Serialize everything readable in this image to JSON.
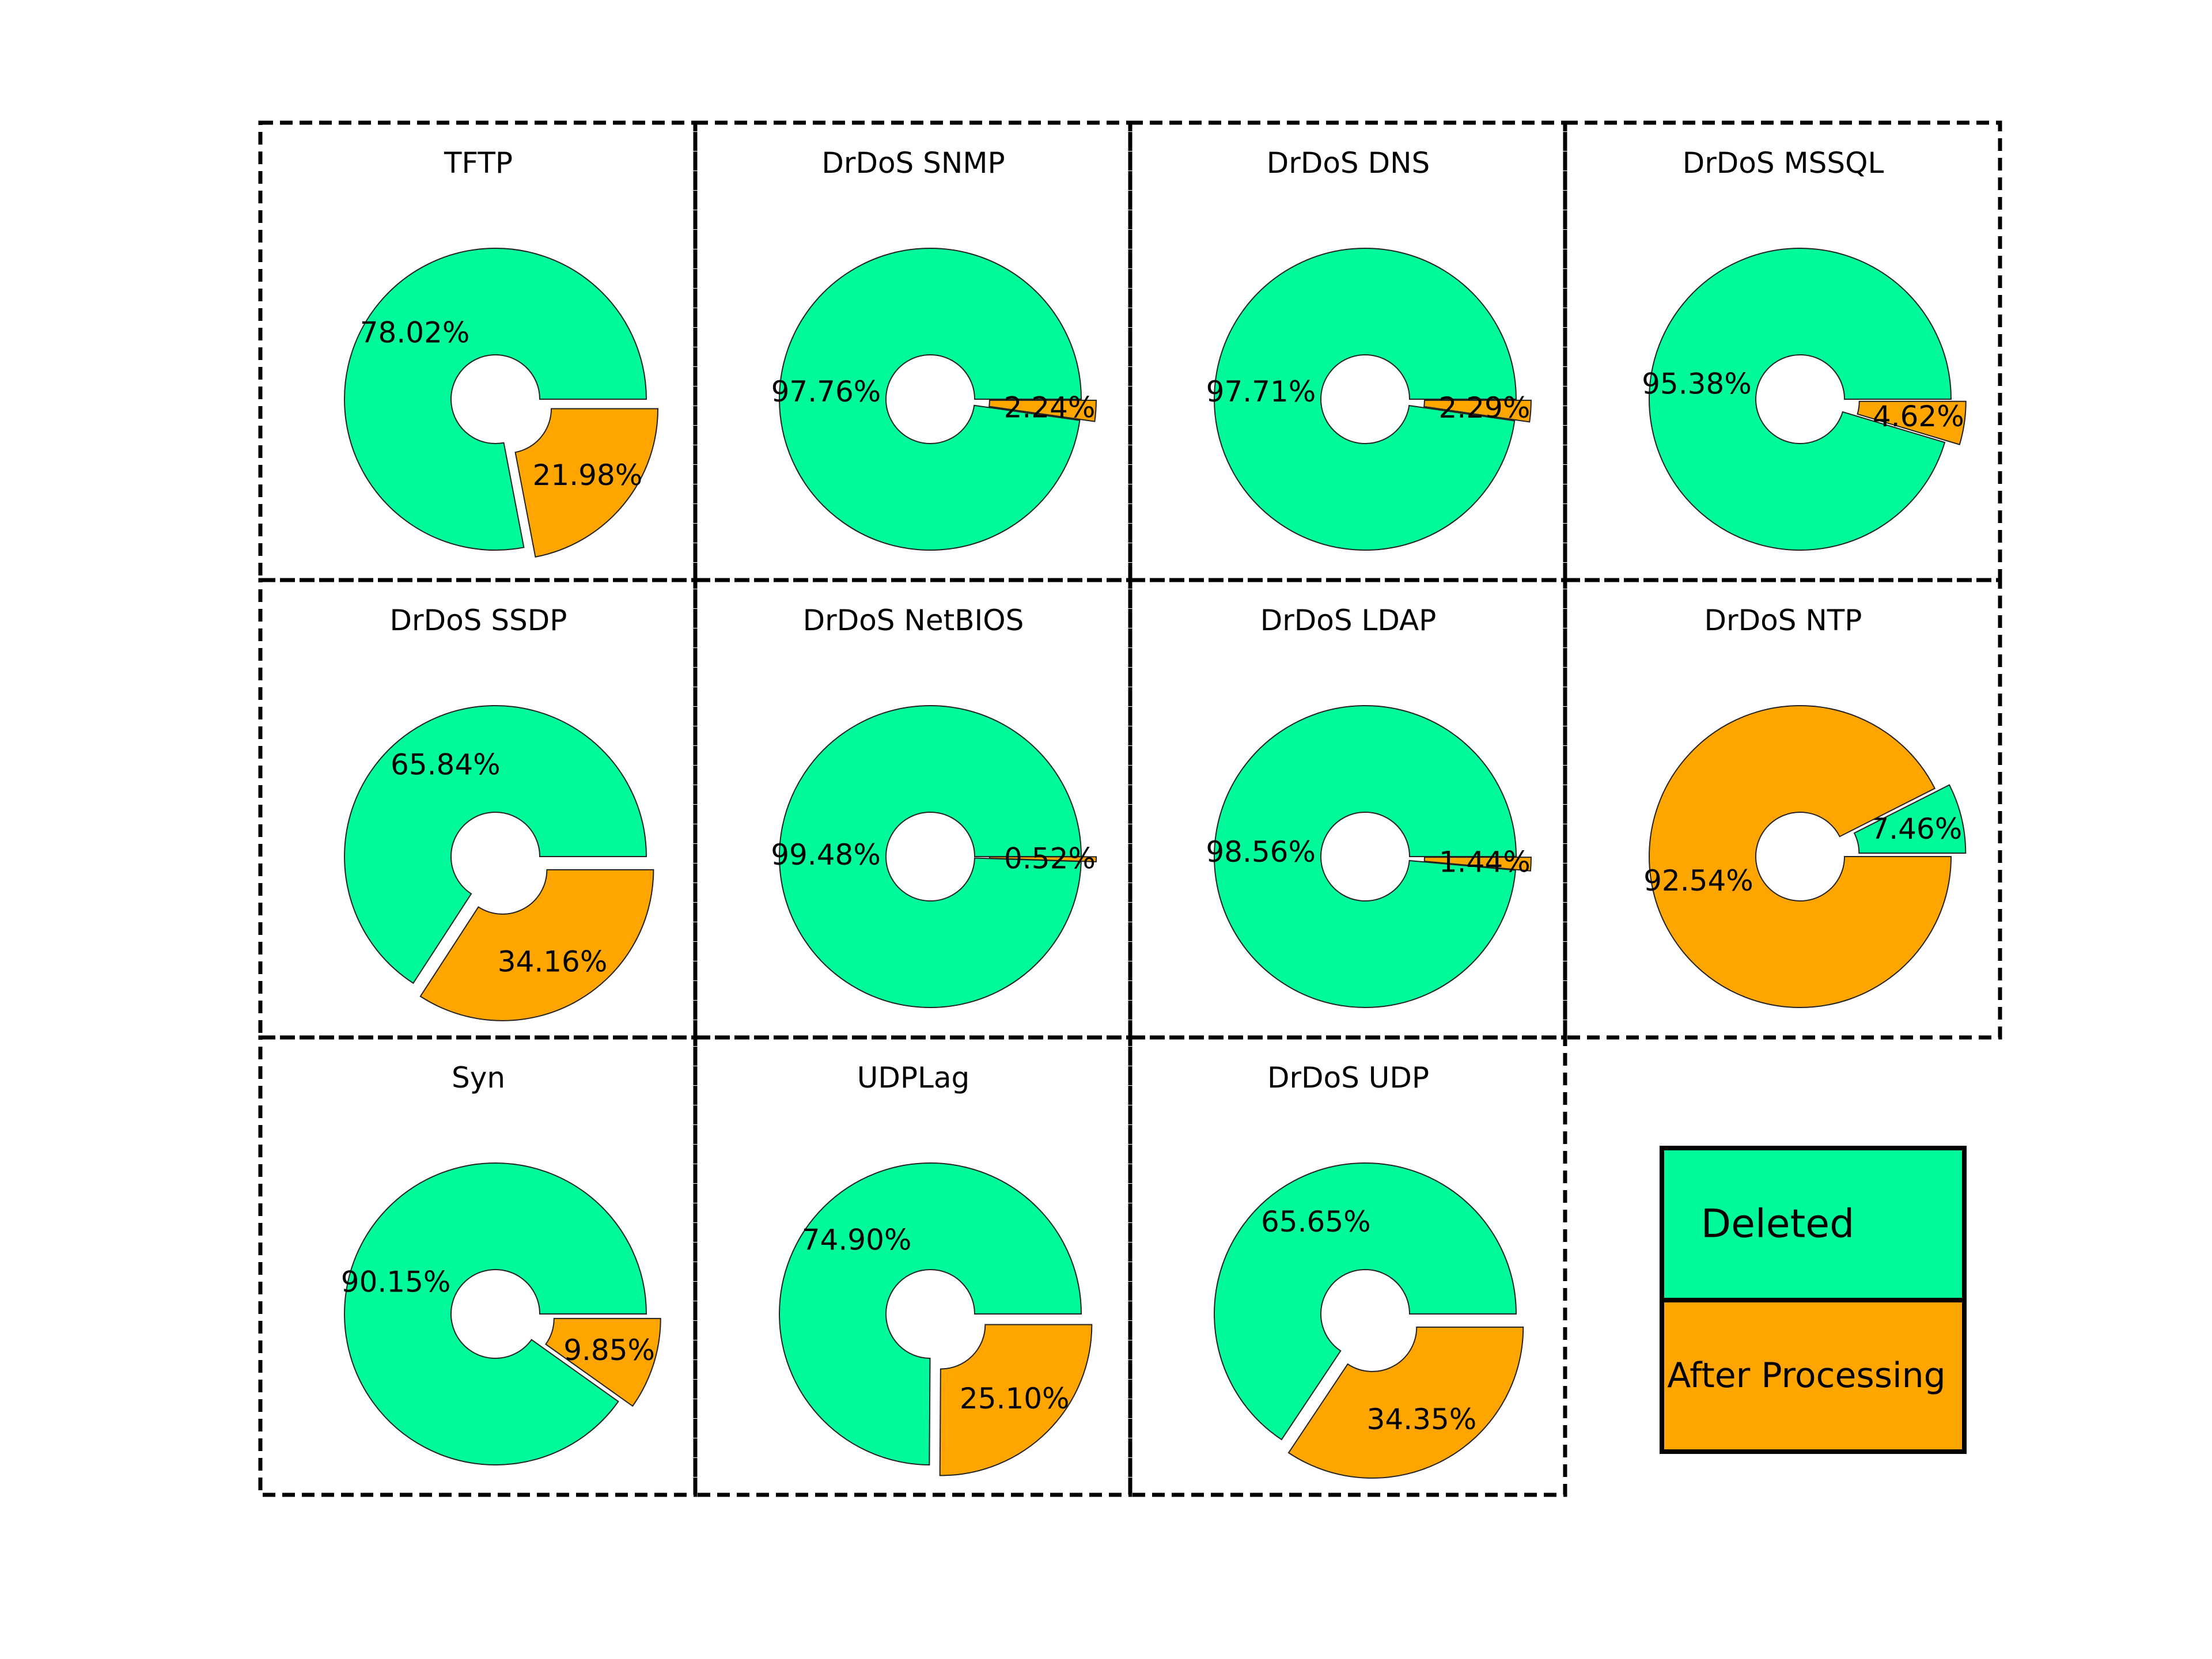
{
  "chart_data": {
    "type": "pie",
    "variant": "donut-grid",
    "legend": {
      "position": "bottom-right",
      "entries": [
        {
          "name": "Deleted",
          "color": "#00fa9a"
        },
        {
          "name": "After Processing",
          "color": "#ffa500"
        }
      ]
    },
    "panels": [
      {
        "title": "TFTP",
        "slices": [
          {
            "series": "Deleted",
            "value": 78.02,
            "label": "78.02%"
          },
          {
            "series": "After Processing",
            "value": 21.98,
            "label": "21.98%",
            "exploded": true
          }
        ]
      },
      {
        "title": "DrDoS SNMP",
        "slices": [
          {
            "series": "Deleted",
            "value": 97.76,
            "label": "97.76%"
          },
          {
            "series": "After Processing",
            "value": 2.24,
            "label": "2.24%",
            "exploded": true
          }
        ]
      },
      {
        "title": "DrDoS DNS",
        "slices": [
          {
            "series": "Deleted",
            "value": 97.71,
            "label": "97.71%"
          },
          {
            "series": "After Processing",
            "value": 2.29,
            "label": "2.29%",
            "exploded": true
          }
        ]
      },
      {
        "title": "DrDoS MSSQL",
        "slices": [
          {
            "series": "Deleted",
            "value": 95.38,
            "label": "95.38%"
          },
          {
            "series": "After Processing",
            "value": 4.62,
            "label": "4.62%",
            "exploded": true
          }
        ]
      },
      {
        "title": "DrDoS SSDP",
        "slices": [
          {
            "series": "Deleted",
            "value": 65.84,
            "label": "65.84%"
          },
          {
            "series": "After Processing",
            "value": 34.16,
            "label": "34.16%",
            "exploded": true
          }
        ]
      },
      {
        "title": "DrDoS NetBIOS",
        "slices": [
          {
            "series": "Deleted",
            "value": 99.48,
            "label": "99.48%"
          },
          {
            "series": "After Processing",
            "value": 0.52,
            "label": "0.52%",
            "exploded": true
          }
        ]
      },
      {
        "title": "DrDoS LDAP",
        "slices": [
          {
            "series": "Deleted",
            "value": 98.56,
            "label": "98.56%"
          },
          {
            "series": "After Processing",
            "value": 1.44,
            "label": "1.44%",
            "exploded": true
          }
        ]
      },
      {
        "title": "DrDoS NTP",
        "slices": [
          {
            "series": "Deleted",
            "value": 7.46,
            "label": "7.46%",
            "exploded": true
          },
          {
            "series": "After Processing",
            "value": 92.54,
            "label": "92.54%"
          }
        ]
      },
      {
        "title": "Syn",
        "slices": [
          {
            "series": "Deleted",
            "value": 90.15,
            "label": "90.15%"
          },
          {
            "series": "After Processing",
            "value": 9.85,
            "label": "9.85%",
            "exploded": true
          }
        ]
      },
      {
        "title": "UDPLag",
        "slices": [
          {
            "series": "Deleted",
            "value": 74.9,
            "label": "74.90%"
          },
          {
            "series": "After Processing",
            "value": 25.1,
            "label": "25.10%",
            "exploded": true
          }
        ]
      },
      {
        "title": "DrDoS UDP",
        "slices": [
          {
            "series": "Deleted",
            "value": 65.65,
            "label": "65.65%"
          },
          {
            "series": "After Processing",
            "value": 34.35,
            "label": "34.35%",
            "exploded": true
          }
        ]
      }
    ]
  }
}
